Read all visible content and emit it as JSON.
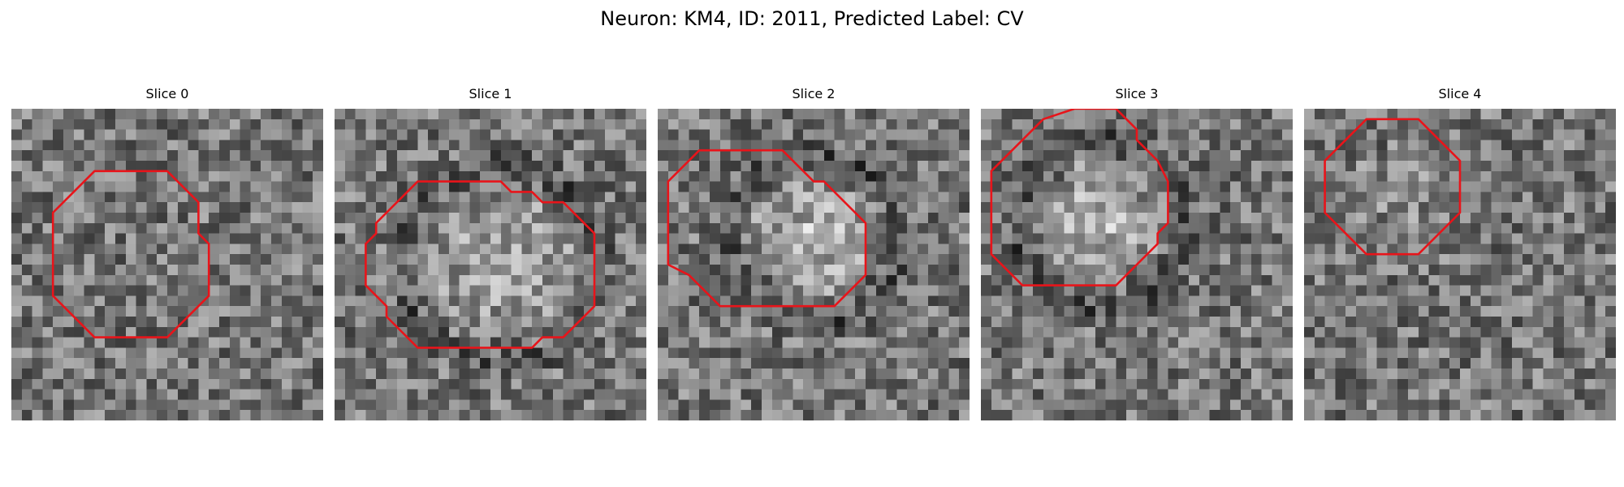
{
  "figure": {
    "title": "Neuron: KM4, ID: 2011, Predicted Label: CV"
  },
  "panels": [
    {
      "title": "Slice 0",
      "bright": 0.18,
      "center": [
        19.0,
        19.0
      ],
      "radius": 0.0,
      "ring": 0.0,
      "outline": [
        [
          11,
          6
        ],
        [
          15,
          6
        ],
        [
          18,
          9
        ],
        [
          18,
          12
        ],
        [
          19,
          13
        ],
        [
          19,
          18
        ],
        [
          15,
          22
        ],
        [
          8,
          22
        ],
        [
          4,
          18
        ],
        [
          4,
          10
        ],
        [
          8,
          6
        ]
      ]
    },
    {
      "title": "Slice 1",
      "bright": 0.55,
      "center": [
        15.5,
        14.5
      ],
      "radius": 7.5,
      "ring": 0.5,
      "outline": [
        [
          8,
          7
        ],
        [
          16,
          7
        ],
        [
          17,
          8
        ],
        [
          19,
          8
        ],
        [
          20,
          9
        ],
        [
          22,
          9
        ],
        [
          25,
          12
        ],
        [
          25,
          19
        ],
        [
          22,
          22
        ],
        [
          20,
          22
        ],
        [
          19,
          23
        ],
        [
          8,
          23
        ],
        [
          5,
          20
        ],
        [
          5,
          19
        ],
        [
          3,
          17
        ],
        [
          3,
          13
        ],
        [
          4,
          12
        ],
        [
          4,
          11
        ]
      ]
    },
    {
      "title": "Slice 2",
      "bright": 0.7,
      "center": [
        14.5,
        12.0
      ],
      "radius": 6.0,
      "ring": 0.55,
      "outline": [
        [
          5,
          4
        ],
        [
          12,
          4
        ],
        [
          15,
          7
        ],
        [
          16,
          7
        ],
        [
          20,
          11
        ],
        [
          20,
          16
        ],
        [
          17,
          19
        ],
        [
          6,
          19
        ],
        [
          3,
          16
        ],
        [
          1,
          15
        ],
        [
          1,
          7
        ],
        [
          4,
          4
        ]
      ]
    },
    {
      "title": "Slice 3",
      "bright": 0.65,
      "center": [
        11.0,
        10.5
      ],
      "radius": 6.0,
      "ring": 0.55,
      "outline": [
        [
          9,
          0
        ],
        [
          13,
          0
        ],
        [
          15,
          2
        ],
        [
          15,
          3
        ],
        [
          17,
          5
        ],
        [
          18,
          7
        ],
        [
          18,
          11
        ],
        [
          17,
          12
        ],
        [
          17,
          13
        ],
        [
          13,
          17
        ],
        [
          4,
          17
        ],
        [
          1,
          14
        ],
        [
          1,
          6
        ],
        [
          6,
          1
        ]
      ]
    },
    {
      "title": "Slice 4",
      "bright": 0.2,
      "center": [
        9.5,
        8.5
      ],
      "radius": 6.0,
      "ring": 0.0,
      "outline": [
        [
          6,
          1
        ],
        [
          11,
          1
        ],
        [
          15,
          5
        ],
        [
          15,
          10
        ],
        [
          11,
          14
        ],
        [
          6,
          14
        ],
        [
          2,
          10
        ],
        [
          2,
          5
        ]
      ]
    }
  ]
}
